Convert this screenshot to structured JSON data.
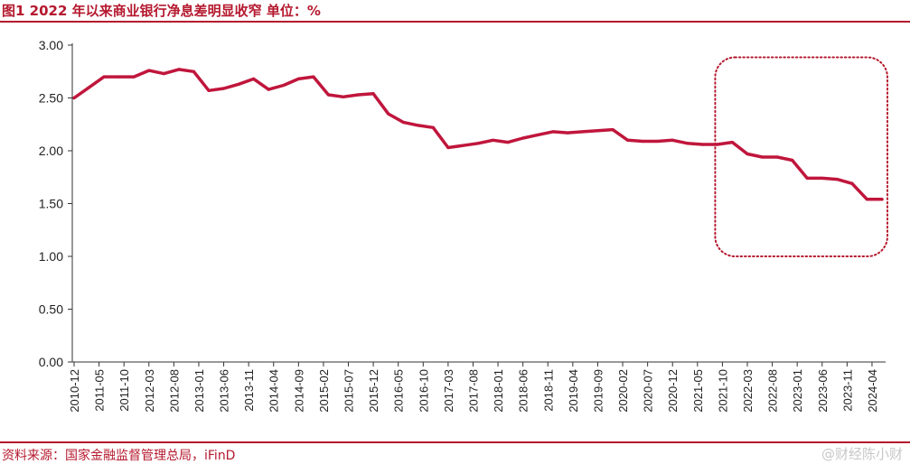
{
  "header": {
    "title": "图1  2022 年以来商业银行净息差明显收窄  单位：%"
  },
  "footer": {
    "source": "资料来源：国家金融监督管理总局，iFinD",
    "watermark": "@财经陈小财"
  },
  "colors": {
    "accent": "#b5192e",
    "line": "#c0163c",
    "highlight_box": "#b5192e"
  },
  "chart_data": {
    "type": "line",
    "title": "2022 年以来商业银行净息差明显收窄",
    "xlabel": "",
    "ylabel": "",
    "ylim": [
      0,
      3
    ],
    "yticks": [
      "0.00",
      "0.50",
      "1.00",
      "1.50",
      "2.00",
      "2.50",
      "3.00"
    ],
    "xticks": [
      "2010-12",
      "2011-05",
      "2011-10",
      "2012-03",
      "2012-08",
      "2013-01",
      "2013-06",
      "2013-11",
      "2014-04",
      "2014-09",
      "2015-02",
      "2015-07",
      "2015-12",
      "2016-05",
      "2016-10",
      "2017-03",
      "2017-08",
      "2018-01",
      "2018-06",
      "2018-11",
      "2019-04",
      "2019-09",
      "2020-02",
      "2020-07",
      "2020-12",
      "2021-05",
      "2021-10",
      "2022-03",
      "2022-08",
      "2023-01",
      "2023-06",
      "2023-11",
      "2024-04"
    ],
    "grid": false,
    "legend": "none",
    "highlight": {
      "label": "highlighted region",
      "x_range": [
        "2021-10",
        "2024-06"
      ],
      "y_range": [
        1.0,
        2.5
      ]
    },
    "series": [
      {
        "x": [
          "2010-12",
          "2011-03",
          "2011-06",
          "2011-09",
          "2011-12",
          "2012-03",
          "2012-06",
          "2012-09",
          "2012-12",
          "2013-03",
          "2013-06",
          "2013-09",
          "2013-12",
          "2014-03",
          "2014-06",
          "2014-09",
          "2014-12",
          "2015-03",
          "2015-06",
          "2015-09",
          "2015-12",
          "2016-03",
          "2016-06",
          "2016-09",
          "2016-12",
          "2017-03",
          "2017-06",
          "2017-09",
          "2017-12",
          "2018-03",
          "2018-06",
          "2018-09",
          "2018-12",
          "2019-03",
          "2019-06",
          "2019-09",
          "2019-12",
          "2020-03",
          "2020-06",
          "2020-09",
          "2020-12",
          "2021-03",
          "2021-06",
          "2021-09",
          "2021-12",
          "2022-03",
          "2022-06",
          "2022-09",
          "2022-12",
          "2023-03",
          "2023-06",
          "2023-09",
          "2023-12",
          "2024-03",
          "2024-06"
        ],
        "values": [
          2.5,
          2.6,
          2.7,
          2.7,
          2.7,
          2.76,
          2.73,
          2.77,
          2.75,
          2.57,
          2.59,
          2.63,
          2.68,
          2.58,
          2.62,
          2.68,
          2.7,
          2.53,
          2.51,
          2.53,
          2.54,
          2.35,
          2.27,
          2.24,
          2.22,
          2.03,
          2.05,
          2.07,
          2.1,
          2.08,
          2.12,
          2.15,
          2.18,
          2.17,
          2.18,
          2.19,
          2.2,
          2.1,
          2.09,
          2.09,
          2.1,
          2.07,
          2.06,
          2.06,
          2.08,
          1.97,
          1.94,
          1.94,
          1.91,
          1.74,
          1.74,
          1.73,
          1.69,
          1.54,
          1.54
        ]
      }
    ]
  }
}
